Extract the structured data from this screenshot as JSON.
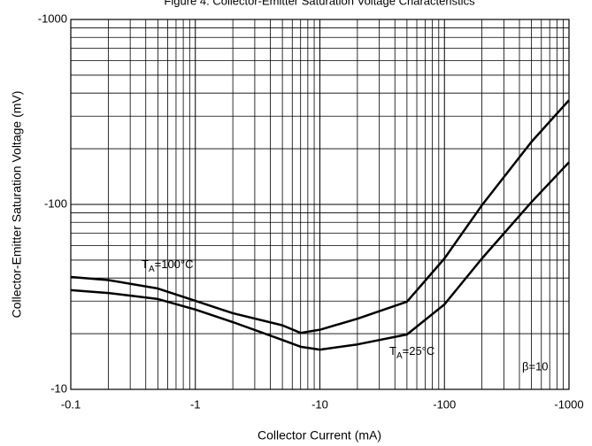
{
  "chart_data": {
    "type": "line",
    "title": "Figure 4. Collector-Emitter Saturation Voltage Characteristics",
    "x_label": "Collector Current (mA)",
    "y_label": "Collector-Emitter Saturation Voltage (mV)",
    "x": [
      -0.1,
      -0.2,
      -0.5,
      -1,
      -2,
      -5,
      -7,
      -10,
      -20,
      -50,
      -100,
      -200,
      -500,
      -1000
    ],
    "series": [
      {
        "label": {
          "main": "T",
          "sub": "A",
          "rest": "=100°C"
        },
        "color": "#000000",
        "values": [
          -40.5,
          -39,
          -35.1,
          -30.1,
          -25.8,
          -22.2,
          -20.2,
          -21.0,
          -24.1,
          -29.8,
          -51,
          -99,
          -218,
          -366
        ]
      },
      {
        "label": {
          "main": "T",
          "sub": "A",
          "rest": "=25°C"
        },
        "color": "#000000",
        "values": [
          -34.4,
          -33.2,
          -30.8,
          -27,
          -23.1,
          -18.5,
          -17,
          -16.4,
          -17.5,
          -19.8,
          -28.8,
          -51,
          -103,
          -169
        ]
      }
    ],
    "annotation": "β=10",
    "xlim": [
      -0.1,
      -1000
    ],
    "ylim": [
      -10,
      -1000
    ],
    "xticks": [
      -0.1,
      -1,
      -10,
      -100,
      -1000
    ],
    "yticks": [
      -10,
      -100,
      -1000
    ],
    "log_x": true,
    "log_y": true,
    "grid": true,
    "minor_grid": true
  }
}
